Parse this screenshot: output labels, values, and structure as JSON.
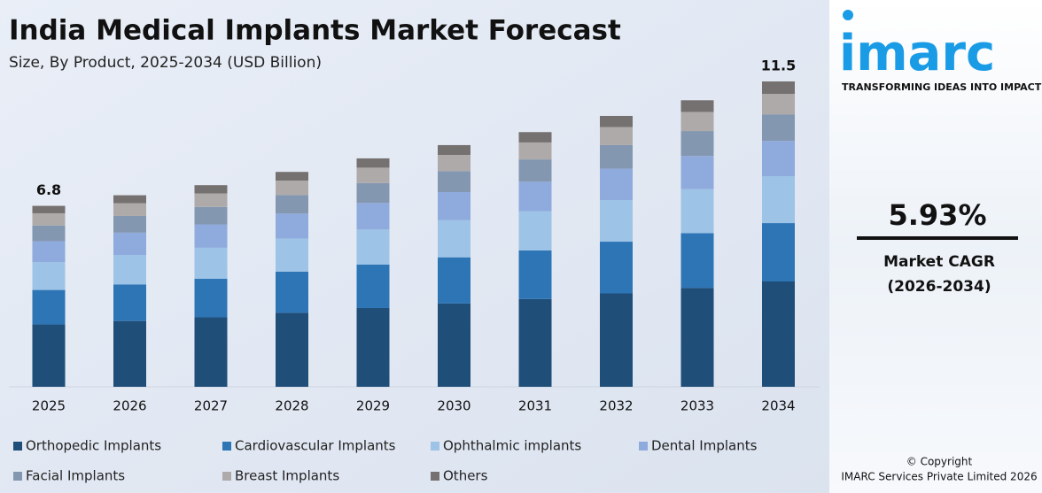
{
  "chart_data": {
    "type": "stacked_bar",
    "title": "India Medical Implants Market Forecast",
    "subtitle": "Size, By Product, 2025-2034 (USD Billion)",
    "categories": [
      "2025",
      "2026",
      "2027",
      "2028",
      "2029",
      "2030",
      "2031",
      "2032",
      "2033",
      "2034"
    ],
    "series": [
      {
        "name": "Orthopedic Implants",
        "color": "#1f4e79",
        "values": [
          2.35,
          2.48,
          2.62,
          2.79,
          2.97,
          3.14,
          3.31,
          3.52,
          3.73,
          3.97
        ]
      },
      {
        "name": "Cardiovascular Implants",
        "color": "#2e75b6",
        "values": [
          1.3,
          1.38,
          1.45,
          1.55,
          1.64,
          1.74,
          1.83,
          1.95,
          2.06,
          2.2
        ]
      },
      {
        "name": "Ophthalmic implants",
        "color": "#9dc3e6",
        "values": [
          1.05,
          1.11,
          1.17,
          1.25,
          1.32,
          1.4,
          1.48,
          1.57,
          1.66,
          1.77
        ]
      },
      {
        "name": "Dental Implants",
        "color": "#8faadc",
        "values": [
          0.79,
          0.84,
          0.88,
          0.94,
          1.0,
          1.06,
          1.11,
          1.18,
          1.25,
          1.33
        ]
      },
      {
        "name": "Facial Implants",
        "color": "#8497b0",
        "values": [
          0.59,
          0.63,
          0.66,
          0.7,
          0.75,
          0.79,
          0.84,
          0.89,
          0.94,
          1.0
        ]
      },
      {
        "name": "Breast Implants",
        "color": "#aeaaaa",
        "values": [
          0.46,
          0.48,
          0.51,
          0.54,
          0.58,
          0.61,
          0.64,
          0.68,
          0.72,
          0.77
        ]
      },
      {
        "name": "Others",
        "color": "#767171",
        "values": [
          0.28,
          0.3,
          0.31,
          0.33,
          0.35,
          0.37,
          0.39,
          0.42,
          0.44,
          0.47
        ]
      }
    ],
    "totals": [
      6.8,
      null,
      null,
      null,
      null,
      null,
      null,
      null,
      null,
      11.5
    ]
  },
  "brand": {
    "logo": "imarc",
    "tagline": "TRANSFORMING IDEAS INTO IMPACT"
  },
  "cagr": {
    "value": "5.93%",
    "label": "Market CAGR",
    "period": "(2026-2034)"
  },
  "footer": {
    "copyright": "© Copyright",
    "company": "IMARC Services Private Limited 2026"
  }
}
